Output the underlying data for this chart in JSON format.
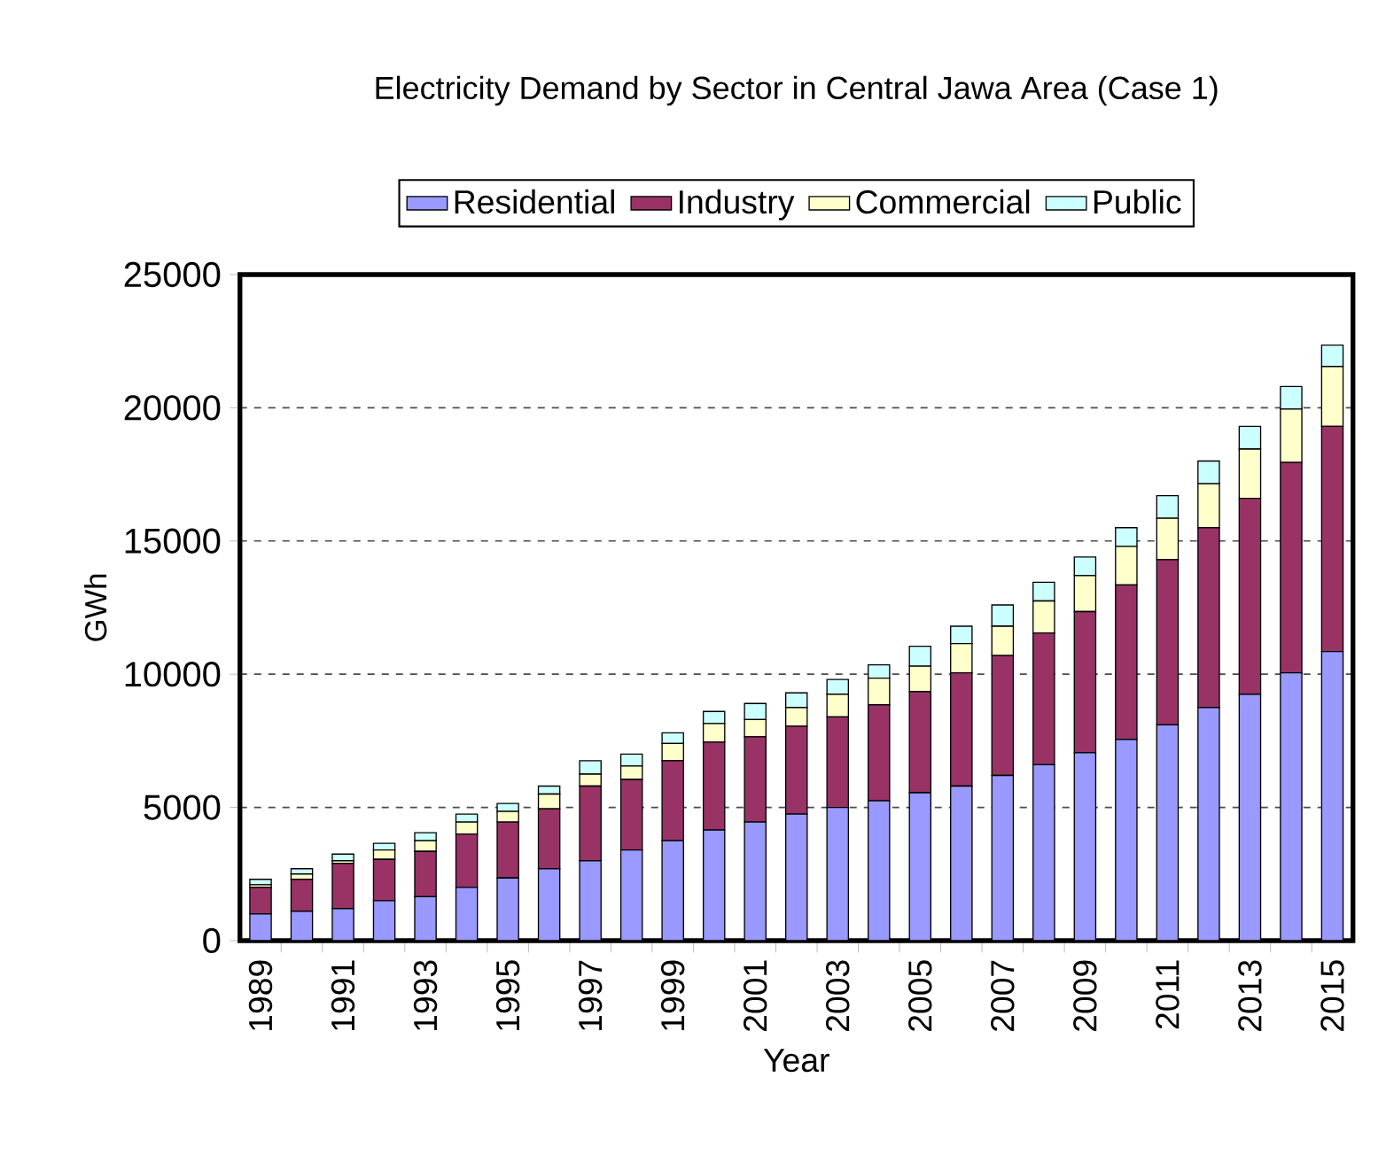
{
  "chart_data": {
    "type": "bar",
    "title": "Electricity Demand by Sector in Central Jawa Area (Case 1)",
    "xlabel": "Year",
    "ylabel": "GWh",
    "categories": [
      "1989",
      null,
      "1991",
      null,
      "1993",
      null,
      "1995",
      null,
      "1997",
      null,
      "1999",
      null,
      "2001",
      null,
      "2003",
      null,
      "2005",
      null,
      "2007",
      null,
      "2009",
      null,
      "2011",
      null,
      "2013",
      null,
      "2015"
    ],
    "series": [
      {
        "name": "Residential",
        "color": "#9999ff",
        "values": [
          1000,
          1100,
          1200,
          1500,
          1650,
          2000,
          2350,
          2700,
          3000,
          3400,
          3750,
          4150,
          4450,
          4750,
          5000,
          5250,
          5550,
          5800,
          6200,
          6600,
          7050,
          7550,
          8100,
          8750,
          9250,
          10050,
          10850
        ]
      },
      {
        "name": "Industry",
        "color": "#993366",
        "values": [
          1000,
          1200,
          1700,
          1550,
          1700,
          2000,
          2100,
          2250,
          2800,
          2650,
          3000,
          3300,
          3200,
          3300,
          3400,
          3600,
          3800,
          4250,
          4500,
          4950,
          5300,
          5800,
          6200,
          6750,
          7350,
          7900,
          8450
        ]
      },
      {
        "name": "Commercial",
        "color": "#ffffcc",
        "values": [
          100,
          200,
          100,
          350,
          400,
          450,
          400,
          550,
          450,
          500,
          650,
          700,
          650,
          700,
          850,
          1000,
          950,
          1100,
          1100,
          1200,
          1350,
          1450,
          1550,
          1650,
          1850,
          2000,
          2250
        ]
      },
      {
        "name": "Public",
        "color": "#ccffff",
        "values": [
          200,
          200,
          250,
          250,
          300,
          300,
          300,
          300,
          500,
          450,
          400,
          450,
          600,
          550,
          550,
          500,
          750,
          650,
          800,
          700,
          700,
          700,
          850,
          850,
          850,
          850,
          800
        ]
      }
    ],
    "stacked": true,
    "ylim": [
      0,
      25000
    ],
    "yticks": [
      0,
      5000,
      10000,
      15000,
      20000,
      25000
    ],
    "grid": "y",
    "legend": "top"
  }
}
